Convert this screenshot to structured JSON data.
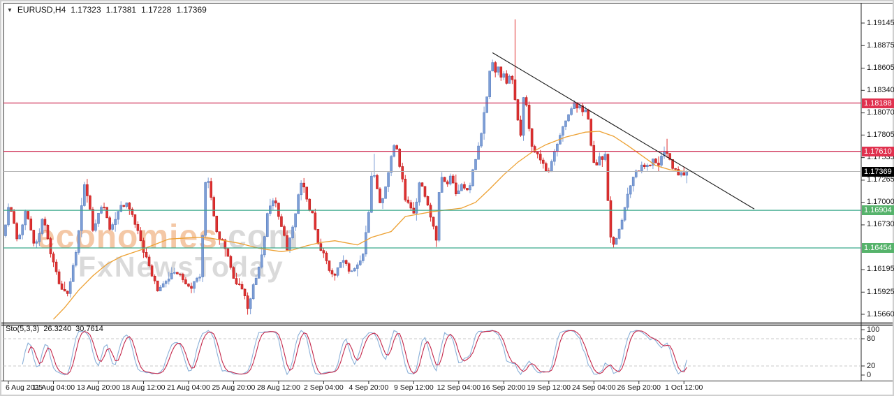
{
  "header": {
    "symbol_period": "EURUSD,H4",
    "open": "1.17323",
    "high": "1.17381",
    "low": "1.17228",
    "close": "1.17369"
  },
  "watermark": {
    "line1_main": "economies",
    "line1_suffix": ".com",
    "line2": "FxNewsToday"
  },
  "indicator": {
    "label": "Sto(5,3,3)",
    "k_value": "26.3240",
    "d_value": "30.7614"
  },
  "price_axis": {
    "ticks": [
      {
        "text": "1.19145",
        "price": 1.19145
      },
      {
        "text": "1.18875",
        "price": 1.18875
      },
      {
        "text": "1.18605",
        "price": 1.18605
      },
      {
        "text": "1.18340",
        "price": 1.1834
      },
      {
        "text": "1.18070",
        "price": 1.1807
      },
      {
        "text": "1.17805",
        "price": 1.17805
      },
      {
        "text": "1.17535",
        "price": 1.17535
      },
      {
        "text": "1.17265",
        "price": 1.17265
      },
      {
        "text": "1.17000",
        "price": 1.17
      },
      {
        "text": "1.16730",
        "price": 1.1673
      },
      {
        "text": "1.16195",
        "price": 1.16195
      },
      {
        "text": "1.15925",
        "price": 1.15925
      },
      {
        "text": "1.15660",
        "price": 1.1566
      }
    ]
  },
  "time_axis": {
    "labels": [
      {
        "text": "6 Aug 2025",
        "bar": 1
      },
      {
        "text": "11 Aug 04:00",
        "bar": 17
      },
      {
        "text": "13 Aug 20:00",
        "bar": 33
      },
      {
        "text": "18 Aug 12:00",
        "bar": 49
      },
      {
        "text": "21 Aug 04:00",
        "bar": 65
      },
      {
        "text": "25 Aug 20:00",
        "bar": 81
      },
      {
        "text": "28 Aug 12:00",
        "bar": 97
      },
      {
        "text": "2 Sep 04:00",
        "bar": 113
      },
      {
        "text": "4 Sep 20:00",
        "bar": 129
      },
      {
        "text": "9 Sep 12:00",
        "bar": 145
      },
      {
        "text": "12 Sep 04:00",
        "bar": 161
      },
      {
        "text": "16 Sep 20:00",
        "bar": 177
      },
      {
        "text": "19 Sep 12:00",
        "bar": 193
      },
      {
        "text": "24 Sep 04:00",
        "bar": 209
      },
      {
        "text": "26 Sep 20:00",
        "bar": 225
      },
      {
        "text": "1 Oct 12:00",
        "bar": 241
      }
    ]
  },
  "sto_axis": {
    "ticks": [
      {
        "text": "100",
        "value": 100
      },
      {
        "text": "80",
        "value": 80
      },
      {
        "text": "20",
        "value": 20
      },
      {
        "text": "0",
        "value": 0
      }
    ]
  },
  "chart_data": {
    "type": "candlestick",
    "symbol": "EURUSD",
    "timeframe": "H4",
    "ohlc_current": {
      "open": 1.17323,
      "high": 1.17381,
      "low": 1.17228,
      "close": 1.17369
    },
    "y_axis_range": [
      1.1566,
      1.19145
    ],
    "bars_total": 243,
    "levels": [
      {
        "label": "1.18188",
        "price": 1.18188,
        "role": "resistance"
      },
      {
        "label": "1.17610",
        "price": 1.1761,
        "role": "resistance"
      },
      {
        "label": "1.17369",
        "price": 1.17369,
        "role": "current"
      },
      {
        "label": "1.16904",
        "price": 1.16904,
        "role": "support"
      },
      {
        "label": "1.16454",
        "price": 1.16454,
        "role": "support"
      }
    ],
    "trendline": {
      "from": {
        "bar": 173,
        "price": 1.1879
      },
      "to": {
        "bar": 266,
        "price": 1.1692
      }
    },
    "price_path": [
      [
        0,
        1.166
      ],
      [
        2,
        1.17
      ],
      [
        5,
        1.1655
      ],
      [
        8,
        1.169
      ],
      [
        11,
        1.1645
      ],
      [
        14,
        1.168
      ],
      [
        17,
        1.1638
      ],
      [
        20,
        1.1598
      ],
      [
        23,
        1.159
      ],
      [
        26,
        1.1648
      ],
      [
        29,
        1.1726
      ],
      [
        32,
        1.1663
      ],
      [
        35,
        1.17
      ],
      [
        38,
        1.1667
      ],
      [
        41,
        1.1694
      ],
      [
        44,
        1.17
      ],
      [
        47,
        1.1673
      ],
      [
        50,
        1.164
      ],
      [
        53,
        1.1612
      ],
      [
        55,
        1.1592
      ],
      [
        58,
        1.1608
      ],
      [
        62,
        1.1618
      ],
      [
        66,
        1.1596
      ],
      [
        70,
        1.1612
      ],
      [
        72,
        1.1737
      ],
      [
        74,
        1.17
      ],
      [
        76,
        1.1662
      ],
      [
        79,
        1.1646
      ],
      [
        82,
        1.1608
      ],
      [
        85,
        1.1598
      ],
      [
        87,
        1.1572
      ],
      [
        89,
        1.1602
      ],
      [
        92,
        1.1638
      ],
      [
        94,
        1.169
      ],
      [
        96,
        1.1706
      ],
      [
        99,
        1.1668
      ],
      [
        101,
        1.1642
      ],
      [
        104,
        1.1692
      ],
      [
        106,
        1.1729
      ],
      [
        108,
        1.17
      ],
      [
        110,
        1.1682
      ],
      [
        112,
        1.1645
      ],
      [
        114,
        1.1638
      ],
      [
        116,
        1.1618
      ],
      [
        118,
        1.1613
      ],
      [
        120,
        1.1632
      ],
      [
        123,
        1.1618
      ],
      [
        126,
        1.1626
      ],
      [
        128,
        1.1642
      ],
      [
        130,
        1.1692
      ],
      [
        131,
        1.1746
      ],
      [
        133,
        1.1712
      ],
      [
        134,
        1.1694
      ],
      [
        136,
        1.1722
      ],
      [
        139,
        1.1775
      ],
      [
        141,
        1.1741
      ],
      [
        143,
        1.1701
      ],
      [
        146,
        1.1687
      ],
      [
        148,
        1.1725
      ],
      [
        150,
        1.1702
      ],
      [
        152,
        1.1679
      ],
      [
        154,
        1.1652
      ],
      [
        155,
        1.1736
      ],
      [
        157,
        1.1721
      ],
      [
        159,
        1.1731
      ],
      [
        161,
        1.1709
      ],
      [
        163,
        1.1723
      ],
      [
        165,
        1.1712
      ],
      [
        167,
        1.1741
      ],
      [
        169,
        1.177
      ],
      [
        171,
        1.181
      ],
      [
        173,
        1.1861
      ],
      [
        174,
        1.1866
      ],
      [
        175,
        1.1855
      ],
      [
        176,
        1.1862
      ],
      [
        177,
        1.1849
      ],
      [
        178,
        1.1857
      ],
      [
        179,
        1.1841
      ],
      [
        180,
        1.1853
      ],
      [
        181,
        1.1848
      ],
      [
        182,
        1.1813
      ],
      [
        183,
        1.1791
      ],
      [
        184,
        1.1777
      ],
      [
        185,
        1.184
      ],
      [
        186,
        1.1811
      ],
      [
        187,
        1.1781
      ],
      [
        188,
        1.1766
      ],
      [
        190,
        1.1753
      ],
      [
        192,
        1.1743
      ],
      [
        194,
        1.1737
      ],
      [
        196,
        1.1761
      ],
      [
        198,
        1.1781
      ],
      [
        200,
        1.1801
      ],
      [
        202,
        1.1813
      ],
      [
        203,
        1.1818
      ],
      [
        204,
        1.1808
      ],
      [
        205,
        1.1816
      ],
      [
        206,
        1.1804
      ],
      [
        207,
        1.1812
      ],
      [
        208,
        1.1794
      ],
      [
        209,
        1.1763
      ],
      [
        210,
        1.1741
      ],
      [
        211,
        1.1745
      ],
      [
        212,
        1.1757
      ],
      [
        213,
        1.175
      ],
      [
        214,
        1.1756
      ],
      [
        215,
        1.1682
      ],
      [
        216,
        1.165
      ],
      [
        217,
        1.1649
      ],
      [
        218,
        1.1661
      ],
      [
        219,
        1.1673
      ],
      [
        220,
        1.1681
      ],
      [
        221,
        1.1696
      ],
      [
        222,
        1.1711
      ],
      [
        223,
        1.1722
      ],
      [
        224,
        1.1731
      ],
      [
        225,
        1.1741
      ],
      [
        226,
        1.1732
      ],
      [
        227,
        1.1746
      ],
      [
        228,
        1.1738
      ],
      [
        229,
        1.1751
      ],
      [
        230,
        1.1742
      ],
      [
        231,
        1.1753
      ],
      [
        232,
        1.1741
      ],
      [
        233,
        1.1749
      ],
      [
        234,
        1.1756
      ],
      [
        235,
        1.1763
      ],
      [
        236,
        1.1757
      ],
      [
        237,
        1.1745
      ],
      [
        238,
        1.1736
      ],
      [
        239,
        1.1743
      ],
      [
        240,
        1.1729
      ],
      [
        241,
        1.1736
      ],
      [
        242,
        1.17369
      ]
    ],
    "spikes": [
      {
        "bar": 23,
        "low": 1.1586
      },
      {
        "bar": 29,
        "high": 1.1728
      },
      {
        "bar": 87,
        "low": 1.1566
      },
      {
        "bar": 131,
        "high": 1.1758
      },
      {
        "bar": 181,
        "high": 1.1919
      },
      {
        "bar": 216,
        "low": 1.1646
      },
      {
        "bar": 235,
        "high": 1.1776
      }
    ],
    "ma_path": [
      [
        17,
        1.156
      ],
      [
        21,
        1.1574
      ],
      [
        26,
        1.1595
      ],
      [
        31,
        1.1612
      ],
      [
        36,
        1.1626
      ],
      [
        41,
        1.1635
      ],
      [
        48,
        1.1643
      ],
      [
        58,
        1.1656
      ],
      [
        68,
        1.1658
      ],
      [
        73,
        1.1657
      ],
      [
        83,
        1.1651
      ],
      [
        90,
        1.1645
      ],
      [
        98,
        1.1641
      ],
      [
        102,
        1.1643
      ],
      [
        107,
        1.1648
      ],
      [
        112,
        1.1652
      ],
      [
        117,
        1.1654
      ],
      [
        125,
        1.1649
      ],
      [
        130,
        1.1658
      ],
      [
        137,
        1.1665
      ],
      [
        142,
        1.1683
      ],
      [
        147,
        1.1686
      ],
      [
        152,
        1.1689
      ],
      [
        157,
        1.1691
      ],
      [
        162,
        1.1693
      ],
      [
        167,
        1.17
      ],
      [
        172,
        1.1716
      ],
      [
        177,
        1.1733
      ],
      [
        182,
        1.1748
      ],
      [
        187,
        1.176
      ],
      [
        192,
        1.1769
      ],
      [
        199,
        1.1778
      ],
      [
        206,
        1.1784
      ],
      [
        211,
        1.1785
      ],
      [
        216,
        1.1779
      ],
      [
        221,
        1.1768
      ],
      [
        226,
        1.1756
      ],
      [
        231,
        1.1744
      ],
      [
        236,
        1.1739
      ],
      [
        241,
        1.1737
      ]
    ],
    "stochastic": {
      "label": "Sto(5,3,3)",
      "k": 26.324,
      "d": 30.7614,
      "upper_band": 80,
      "lower_band": 20,
      "range": [
        0,
        100
      ]
    },
    "colors": {
      "up_candle": "#7d9ed6",
      "up_candle_border": "#5a7fc0",
      "down_candle": "#e03232",
      "down_candle_border": "#b71c1c",
      "ma_line": "#eda133",
      "resistance_line": "#cf3357",
      "support_line": "#3aa98c",
      "current_price_line": "#b5b5b5",
      "trendline": "#1a1a1a",
      "sto_k_line": "#8ab0d8",
      "sto_d_line": "#c4274a",
      "resistance_label_bg": "#e0314e",
      "support_label_bg": "#56b36b",
      "current_label_bg": "#000000"
    }
  }
}
